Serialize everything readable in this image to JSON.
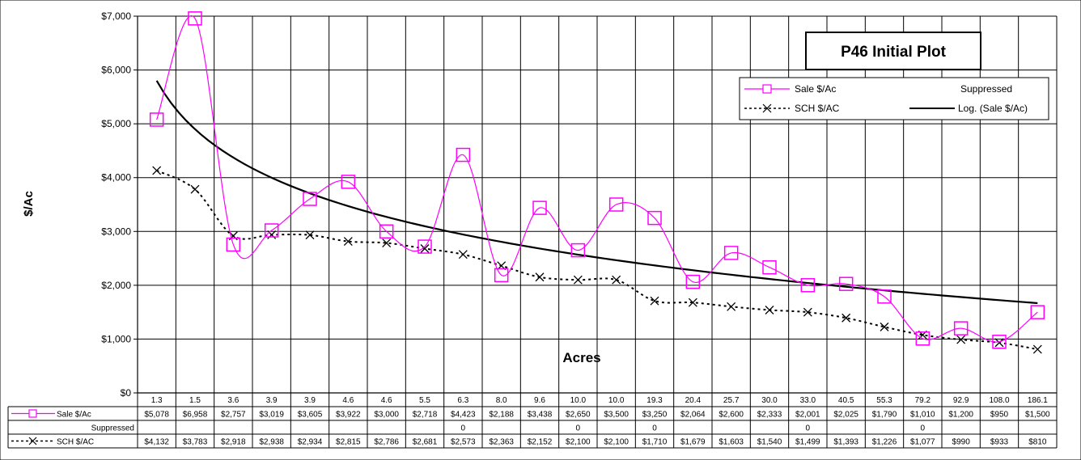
{
  "chart_data": {
    "type": "line",
    "title": "P46 Initial Plot",
    "xlabel": "Acres",
    "ylabel": "$/Ac",
    "ylim": [
      0,
      7000
    ],
    "y_ticks": [
      "$0",
      "$1,000",
      "$2,000",
      "$3,000",
      "$4,000",
      "$5,000",
      "$6,000",
      "$7,000"
    ],
    "y_tick_values": [
      0,
      1000,
      2000,
      3000,
      4000,
      5000,
      6000,
      7000
    ],
    "grid": true,
    "legend_position": "top-right",
    "categories": [
      "1.3",
      "1.5",
      "3.6",
      "3.9",
      "3.9",
      "4.6",
      "4.6",
      "5.5",
      "6.3",
      "8.0",
      "9.6",
      "10.0",
      "10.0",
      "19.3",
      "20.4",
      "25.7",
      "30.0",
      "33.0",
      "40.5",
      "55.3",
      "79.2",
      "92.9",
      "108.0",
      "186.1"
    ],
    "series": [
      {
        "name": "Sale $/Ac",
        "values": [
          5078,
          6958,
          2757,
          3019,
          3605,
          3922,
          3000,
          2718,
          4423,
          2188,
          3438,
          2650,
          3500,
          3250,
          2064,
          2600,
          2333,
          2001,
          2025,
          1790,
          1010,
          1200,
          950,
          1500
        ],
        "labels": [
          "$5,078",
          "$6,958",
          "$2,757",
          "$3,019",
          "$3,605",
          "$3,922",
          "$3,000",
          "$2,718",
          "$4,423",
          "$2,188",
          "$3,438",
          "$2,650",
          "$3,500",
          "$3,250",
          "$2,064",
          "$2,600",
          "$2,333",
          "$2,001",
          "$2,025",
          "$1,790",
          "$1,010",
          "$1,200",
          "$950",
          "$1,500"
        ],
        "color": "#ff00ff",
        "marker": "square",
        "line": "smooth"
      },
      {
        "name": "Suppressed",
        "labels": [
          "",
          "",
          "",
          "",
          "",
          "",
          "",
          "",
          "0",
          "",
          "",
          "0",
          "",
          "0",
          "",
          "",
          "",
          "0",
          "",
          "",
          "0",
          "",
          "",
          ""
        ],
        "color": "#000000"
      },
      {
        "name": "SCH $/AC",
        "values": [
          4132,
          3783,
          2918,
          2938,
          2934,
          2815,
          2786,
          2681,
          2573,
          2363,
          2152,
          2100,
          2100,
          1710,
          1679,
          1603,
          1540,
          1499,
          1393,
          1226,
          1077,
          990,
          933,
          810
        ],
        "labels": [
          "$4,132",
          "$3,783",
          "$2,918",
          "$2,938",
          "$2,934",
          "$2,815",
          "$2,786",
          "$2,681",
          "$2,573",
          "$2,363",
          "$2,152",
          "$2,100",
          "$2,100",
          "$1,710",
          "$1,679",
          "$1,603",
          "$1,540",
          "$1,499",
          "$1,393",
          "$1,226",
          "$1,077",
          "$990",
          "$933",
          "$810"
        ],
        "color": "#000000",
        "marker": "x",
        "line": "dotted"
      }
    ],
    "trendline": {
      "name": "Log. (Sale $/Ac)",
      "type": "logarithmic",
      "of_series": "Sale $/Ac",
      "color": "#000000"
    }
  }
}
